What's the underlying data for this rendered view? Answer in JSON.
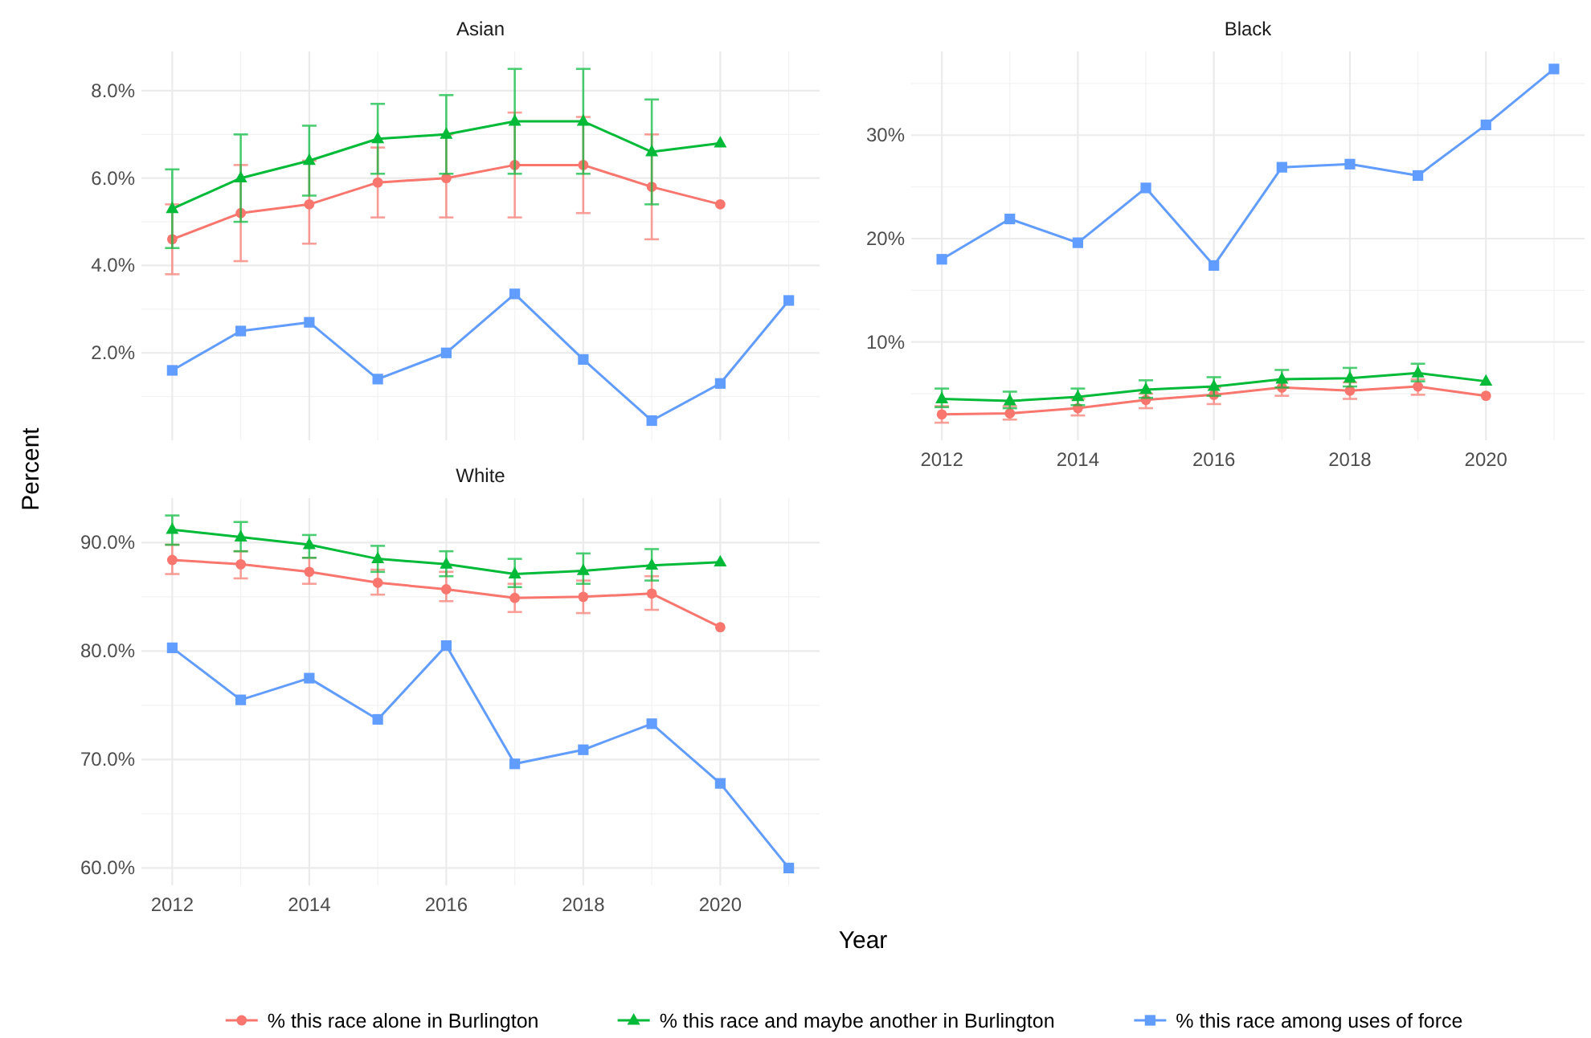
{
  "chart_data": [
    {
      "type": "line",
      "title": "Asian",
      "xlabel": "Year",
      "ylabel": "Percent",
      "legend": "bottom",
      "grid": true,
      "tick_labels": "y",
      "x": [
        2012,
        2013,
        2014,
        2015,
        2016,
        2017,
        2018,
        2019,
        2020,
        2021
      ],
      "xlim": [
        2011.55,
        2021.45
      ],
      "xticks": [
        2012,
        2014,
        2016,
        2018,
        2020
      ],
      "ylim": [
        0.0,
        8.9
      ],
      "yticks": [
        {
          "value": 2,
          "label": "2.0%"
        },
        {
          "value": 4,
          "label": "4.0%"
        },
        {
          "value": 6,
          "label": "6.0%"
        },
        {
          "value": 8,
          "label": "8.0%"
        }
      ],
      "series": [
        {
          "name": "% this race alone in Burlington",
          "color": "#f8766d",
          "marker": "circle",
          "values": [
            4.6,
            5.2,
            5.4,
            5.9,
            6.0,
            6.3,
            6.3,
            5.8,
            5.4,
            null
          ],
          "errors": [
            [
              3.8,
              5.4
            ],
            [
              4.1,
              6.3
            ],
            [
              4.5,
              6.4
            ],
            [
              5.1,
              6.7
            ],
            [
              5.1,
              7.0
            ],
            [
              5.1,
              7.5
            ],
            [
              5.2,
              7.4
            ],
            [
              4.6,
              7.0
            ],
            null,
            null
          ]
        },
        {
          "name": "% this race and maybe another in Burlington",
          "color": "#00ba38",
          "marker": "triangle",
          "values": [
            5.3,
            6.0,
            6.4,
            6.9,
            7.0,
            7.3,
            7.3,
            6.6,
            6.8,
            null
          ],
          "errors": [
            [
              4.4,
              6.2
            ],
            [
              5.0,
              7.0
            ],
            [
              5.6,
              7.2
            ],
            [
              6.1,
              7.7
            ],
            [
              6.1,
              7.9
            ],
            [
              6.1,
              8.5
            ],
            [
              6.1,
              8.5
            ],
            [
              5.4,
              7.8
            ],
            null,
            null
          ]
        },
        {
          "name": "% this race among uses of force",
          "color": "#619cff",
          "marker": "square",
          "values": [
            1.6,
            2.5,
            2.7,
            1.4,
            2.0,
            3.35,
            1.85,
            0.45,
            1.3,
            3.2
          ]
        }
      ]
    },
    {
      "type": "line",
      "title": "Black",
      "grid": true,
      "x": [
        2012,
        2013,
        2014,
        2015,
        2016,
        2017,
        2018,
        2019,
        2020,
        2021
      ],
      "xlim": [
        2011.55,
        2021.45
      ],
      "xticks": [
        2012,
        2014,
        2016,
        2018,
        2020
      ],
      "ylim": [
        0.5,
        38.1
      ],
      "yticks": [
        {
          "value": 10,
          "label": "10%"
        },
        {
          "value": 20,
          "label": "20%"
        },
        {
          "value": 30,
          "label": "30%"
        }
      ],
      "series": [
        {
          "color": "#f8766d",
          "marker": "circle",
          "values": [
            3.0,
            3.1,
            3.6,
            4.4,
            4.9,
            5.6,
            5.3,
            5.7,
            4.8,
            null
          ],
          "errors": [
            [
              2.2,
              3.8
            ],
            [
              2.5,
              3.8
            ],
            [
              2.9,
              4.5
            ],
            [
              3.6,
              5.0
            ],
            [
              4.0,
              5.6
            ],
            [
              4.8,
              6.3
            ],
            [
              4.5,
              6.1
            ],
            [
              4.9,
              6.4
            ],
            null,
            null
          ]
        },
        {
          "color": "#00ba38",
          "marker": "triangle",
          "values": [
            4.5,
            4.3,
            4.7,
            5.4,
            5.7,
            6.4,
            6.5,
            7.0,
            6.2,
            null
          ],
          "errors": [
            [
              3.7,
              5.5
            ],
            [
              3.6,
              5.2
            ],
            [
              3.9,
              5.5
            ],
            [
              4.6,
              6.3
            ],
            [
              4.8,
              6.6
            ],
            [
              5.6,
              7.3
            ],
            [
              5.7,
              7.5
            ],
            [
              6.2,
              7.9
            ],
            null,
            null
          ]
        },
        {
          "color": "#619cff",
          "marker": "square",
          "values": [
            18.0,
            21.9,
            19.6,
            24.9,
            17.4,
            26.9,
            27.2,
            26.1,
            31.0,
            36.4
          ]
        }
      ]
    },
    {
      "type": "line",
      "title": "White",
      "grid": true,
      "x": [
        2012,
        2013,
        2014,
        2015,
        2016,
        2017,
        2018,
        2019,
        2020,
        2021
      ],
      "xlim": [
        2011.55,
        2021.45
      ],
      "xticks": [
        2012,
        2014,
        2016,
        2018,
        2020
      ],
      "ylim": [
        58.4,
        94.1
      ],
      "yticks": [
        {
          "value": 60,
          "label": "60.0%"
        },
        {
          "value": 70,
          "label": "70.0%"
        },
        {
          "value": 80,
          "label": "80.0%"
        },
        {
          "value": 90,
          "label": "90.0%"
        }
      ],
      "series": [
        {
          "color": "#f8766d",
          "marker": "circle",
          "values": [
            88.4,
            88.0,
            87.3,
            86.3,
            85.7,
            84.9,
            85.0,
            85.3,
            82.2,
            null
          ],
          "errors": [
            [
              87.1,
              89.8
            ],
            [
              86.7,
              89.2
            ],
            [
              86.2,
              88.6
            ],
            [
              85.2,
              87.5
            ],
            [
              84.6,
              87.3
            ],
            [
              83.6,
              86.2
            ],
            [
              83.5,
              86.5
            ],
            [
              83.8,
              86.9
            ],
            null,
            null
          ]
        },
        {
          "color": "#00ba38",
          "marker": "triangle",
          "values": [
            91.2,
            90.5,
            89.8,
            88.5,
            88.0,
            87.1,
            87.4,
            87.9,
            88.2,
            null
          ],
          "errors": [
            [
              89.8,
              92.5
            ],
            [
              89.2,
              91.9
            ],
            [
              88.6,
              90.7
            ],
            [
              87.3,
              89.7
            ],
            [
              86.9,
              89.2
            ],
            [
              85.9,
              88.5
            ],
            [
              86.2,
              89.0
            ],
            [
              86.5,
              89.4
            ],
            null,
            null
          ]
        },
        {
          "color": "#619cff",
          "marker": "square",
          "values": [
            80.3,
            75.5,
            77.5,
            73.7,
            80.5,
            69.6,
            70.9,
            73.3,
            67.8,
            60.0
          ]
        }
      ]
    }
  ]
}
